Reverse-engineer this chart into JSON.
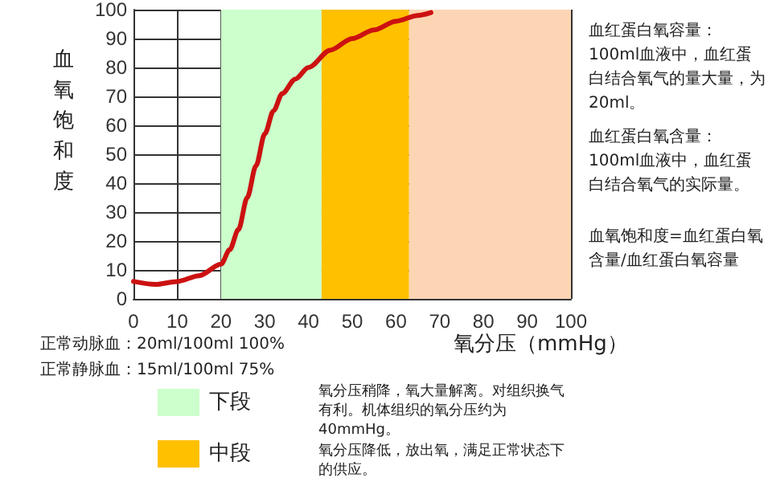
{
  "chart_data": {
    "type": "line",
    "xlabel": "氧分压（mmHg）",
    "ylabel": "血氧饱和度",
    "x": [
      0,
      5,
      10,
      15,
      20,
      22,
      24,
      26,
      28,
      30,
      32,
      34,
      37,
      40,
      45,
      50,
      55,
      60,
      65,
      68
    ],
    "series": [
      {
        "color": "#cc1111",
        "values": [
          6,
          5,
          6,
          8,
          12,
          17,
          24,
          35,
          46,
          57,
          65,
          71,
          76,
          80,
          86,
          90,
          93,
          96,
          98,
          99
        ]
      }
    ],
    "xlim": [
      0,
      100
    ],
    "xticks": [
      0,
      10,
      20,
      30,
      40,
      50,
      60,
      70,
      80,
      90,
      100
    ],
    "ylim": [
      0,
      100
    ],
    "yticks": [
      0,
      10,
      20,
      30,
      40,
      50,
      60,
      70,
      80,
      90,
      100
    ],
    "grid": true,
    "legend": "bottom",
    "marker": "none",
    "line_style": "solid",
    "bands": [
      {
        "axis": "x",
        "from": 20,
        "to": 43,
        "label": "下段",
        "color": "#ccffcc"
      },
      {
        "axis": "x",
        "from": 43,
        "to": 63,
        "label": "中段",
        "color": "#ffc000"
      },
      {
        "axis": "x",
        "from": 63,
        "to": 100,
        "color": "#fcd5b4"
      }
    ],
    "annotations": [
      "正常动脉血：20ml/100ml 100%",
      "正常静脉血：15ml/100ml 75%",
      "氧分压稍降，氧大量解离。对组织换气有利。机体组织的氧分压约为40mmHg。",
      "氧分压降低，放出氧，满足正常状态下的供应。",
      "血红蛋白氧容量：100ml血液中，血红蛋白结合氧气的量大量，为20ml。",
      "血红蛋白氧含量：100ml血液中，血红蛋白结合氧气的实际量。",
      "血氧饱和度=血红蛋白氧含量/血红蛋白氧容量"
    ]
  }
}
